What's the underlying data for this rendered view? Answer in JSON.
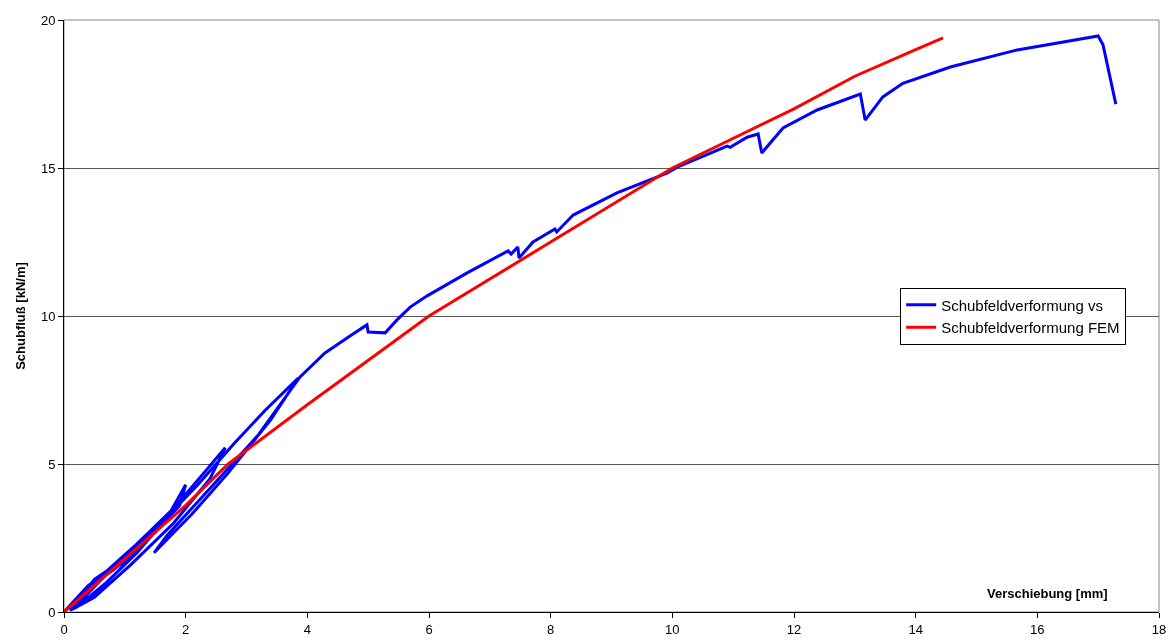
{
  "chart_data": {
    "type": "line",
    "xlabel": "Verschiebung [mm]",
    "ylabel": "Schubfluß [kN/m]",
    "xlim": [
      0,
      18
    ],
    "xticks": [
      0,
      2,
      4,
      6,
      8,
      10,
      12,
      14,
      16,
      18
    ],
    "ylim": [
      0,
      20
    ],
    "yticks": [
      0,
      5,
      10,
      15,
      20
    ],
    "grid": "y",
    "legend": "right",
    "marker": "none",
    "line_style": "solid",
    "series": [
      {
        "name": "Schubfeldverformung vs",
        "color": "#0000ff",
        "x": [
          0,
          0.4,
          0.8,
          1.2,
          0.9,
          0.5,
          0.1,
          0.5,
          1.0,
          1.5,
          1.9,
          2.0,
          1.7,
          1.2,
          0.7,
          0.2,
          0.6,
          1.2,
          1.8,
          2.3,
          2.65,
          2.4,
          1.8,
          1.1,
          0.5,
          0.15,
          0.8,
          1.5,
          2.2,
          2.8,
          3.3,
          3.85,
          3.4,
          2.7,
          2.1,
          1.48,
          1.7,
          2.5,
          3.2,
          3.88,
          4.29,
          4.75,
          4.98,
          5.0,
          5.28,
          5.47,
          5.69,
          5.97,
          6.62,
          7.3,
          7.35,
          7.46,
          7.48,
          7.71,
          8.07,
          8.1,
          8.37,
          9.09,
          9.91,
          10.08,
          10.9,
          10.95,
          11.23,
          11.41,
          11.47,
          11.82,
          12.38,
          13.09,
          13.17,
          13.46,
          13.79,
          14.57,
          15.67,
          17.0,
          17.08,
          17.29
        ],
        "values": [
          0,
          0.9,
          1.4,
          2.1,
          1.4,
          0.6,
          0.05,
          1.1,
          1.8,
          2.7,
          3.6,
          4.3,
          3.2,
          2.0,
          1.0,
          0.15,
          1.2,
          2.3,
          3.5,
          4.7,
          5.55,
          4.5,
          3.0,
          1.6,
          0.5,
          0.1,
          1.5,
          2.8,
          4.3,
          5.7,
          6.8,
          7.9,
          6.5,
          4.7,
          3.3,
          2.0,
          2.6,
          4.4,
          6.0,
          7.94,
          8.75,
          9.39,
          9.7,
          9.46,
          9.43,
          9.86,
          10.3,
          10.68,
          11.45,
          12.2,
          12.09,
          12.33,
          11.96,
          12.5,
          12.94,
          12.84,
          13.41,
          14.16,
          14.83,
          15.03,
          15.74,
          15.7,
          16.04,
          16.15,
          15.51,
          16.35,
          16.96,
          17.5,
          16.62,
          17.4,
          17.86,
          18.41,
          18.99,
          19.46,
          19.16,
          17.16
        ]
      },
      {
        "name": "Schubfeldverformung FEM",
        "color": "#ff0000",
        "x": [
          0,
          2,
          2.7,
          4,
          6,
          8,
          10,
          12,
          13,
          14,
          14.45
        ],
        "values": [
          0,
          3.6,
          5,
          7,
          10,
          12.5,
          15,
          17,
          18.1,
          19,
          19.4
        ]
      }
    ]
  }
}
